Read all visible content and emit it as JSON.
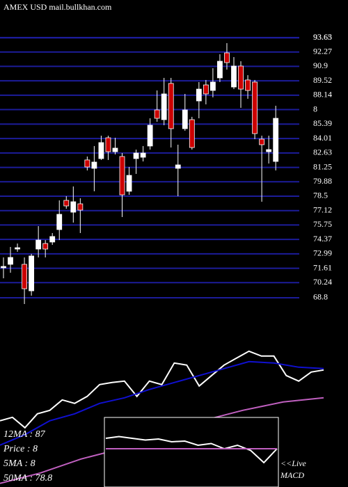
{
  "chart_data": [
    {
      "type": "candlestick",
      "title": "AMEX  USD mail.bullkhan.com",
      "open": [
        71.66,
        71.99,
        73.45,
        71.99,
        69.46,
        73.45,
        73.98,
        74.12,
        75.31,
        78.1,
        76.97,
        77.77,
        81.96,
        81.16,
        82.09,
        84.08,
        82.75,
        82.29,
        78.97,
        82.09,
        82.22,
        83.29,
        86.74,
        85.81,
        89.27,
        81.16,
        84.95,
        85.81,
        87.6,
        89.13,
        88.6,
        89.8,
        92.19,
        88.93,
        90.93,
        89.6,
        89.4,
        83.95,
        82.75,
        81.82
      ],
      "high": [
        72.65,
        73.65,
        73.98,
        72.65,
        72.99,
        75.64,
        74.31,
        74.98,
        78.1,
        78.5,
        79.43,
        78.3,
        82.29,
        83.29,
        84.28,
        84.28,
        84.08,
        82.62,
        81.29,
        82.95,
        83.29,
        85.94,
        88.6,
        89.8,
        89.8,
        83.42,
        88.27,
        86.08,
        89.4,
        89.6,
        90.73,
        92.06,
        93.12,
        91.79,
        91.39,
        90.06,
        89.6,
        84.28,
        84.28,
        87.14
      ],
      "low": [
        70.66,
        71.19,
        73.19,
        68.2,
        69.0,
        72.65,
        72.65,
        73.85,
        74.31,
        77.3,
        75.98,
        74.98,
        80.96,
        78.97,
        81.96,
        81.96,
        82.49,
        76.51,
        78.63,
        80.63,
        81.82,
        82.95,
        85.61,
        85.28,
        83.15,
        78.5,
        84.75,
        82.95,
        85.94,
        87.27,
        87.94,
        89.4,
        90.59,
        88.73,
        86.94,
        87.8,
        83.95,
        77.97,
        81.62,
        80.96
      ],
      "close": [
        71.79,
        72.65,
        73.58,
        69.66,
        72.79,
        74.31,
        73.45,
        74.65,
        76.77,
        77.57,
        77.97,
        77.17,
        81.29,
        81.76,
        83.62,
        82.75,
        83.09,
        78.63,
        80.49,
        82.62,
        82.62,
        85.28,
        85.94,
        88.27,
        84.95,
        81.49,
        86.74,
        83.15,
        88.73,
        88.27,
        89.4,
        91.39,
        91.26,
        90.93,
        88.73,
        88.6,
        84.48,
        83.42,
        82.95,
        85.94
      ],
      "up_color": "#ffffff",
      "down_color": "#cc0000",
      "ylim": [
        68.0,
        97.24
      ],
      "yticks": [
        93.65,
        93.63,
        92.27,
        90.9,
        89.52,
        88.14,
        {
          "value": 86.77,
          "label": "8"
        },
        85.39,
        84.01,
        82.63,
        81.25,
        79.88,
        78.5,
        77.12,
        75.75,
        74.37,
        72.99,
        71.61,
        70.24,
        68.8
      ],
      "grid": true,
      "grid_color": "#1c1c9a"
    },
    {
      "type": "line",
      "annotations": [
        "12MA : 87",
        "Price : 8",
        "5MA : 8",
        "50MA : 78.8"
      ],
      "ylim": [
        53.6,
        103
      ],
      "series": [
        {
          "color": "#ffffff",
          "values": [
            71.69,
            72.64,
            69.79,
            73.59,
            74.54,
            77.39,
            76.44,
            78.34,
            81.57,
            82.14,
            82.52,
            78.34,
            82.52,
            81.57,
            87.46,
            86.89,
            81.19,
            84.04,
            86.89,
            88.79,
            90.69,
            89.36,
            89.36,
            84.04,
            82.52,
            84.99,
            85.56
          ]
        },
        {
          "color": "#1010d0",
          "values": [
            65.04,
            67.89,
            71.69,
            73.59,
            76.44,
            77.96,
            80.24,
            82.14,
            84.04,
            85.94,
            87.84,
            87.46,
            86.32,
            85.94
          ]
        },
        {
          "color": "#c060c0",
          "values": [
            54.59,
            57.44,
            61.24,
            64.09,
            67.89,
            71.69,
            74.54,
            76.82,
            77.96
          ]
        }
      ]
    },
    {
      "type": "line",
      "title": "MACD",
      "annotation": "<<Live",
      "ylim": [
        -1,
        1
      ],
      "series": [
        {
          "color": "#ffffff",
          "values": [
            0.4,
            0.45,
            0.4,
            0.35,
            0.38,
            0.3,
            0.32,
            0.2,
            0.25,
            0.1,
            0.2,
            0.05,
            -0.3,
            0.1
          ]
        },
        {
          "color": "#c060c0",
          "values": [
            0.1,
            0.1,
            0.1,
            0.1,
            0.1,
            0.1,
            0.1,
            0.1,
            0.1,
            0.1,
            0.1,
            0.1,
            0.1,
            0.1
          ]
        }
      ]
    }
  ]
}
